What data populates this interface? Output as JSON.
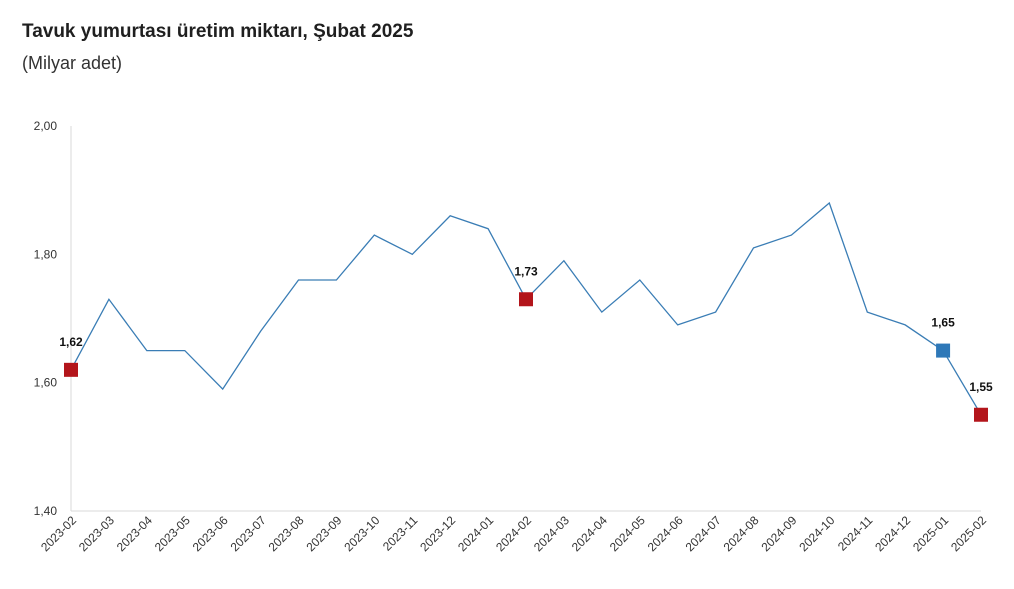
{
  "title": "Tavuk yumurtası üretim miktarı, Şubat 2025",
  "subtitle": "(Milyar adet)",
  "colors": {
    "line": "#3a7db5",
    "highlight_red": "#b3151b",
    "highlight_blue": "#2e78b8",
    "axis": "#d9d9d9"
  },
  "chart_data": {
    "type": "line",
    "title": "Tavuk yumurtası üretim miktarı, Şubat 2025",
    "subtitle": "(Milyar adet)",
    "x": [
      "2023-02",
      "2023-03",
      "2023-04",
      "2023-05",
      "2023-06",
      "2023-07",
      "2023-08",
      "2023-09",
      "2023-10",
      "2023-11",
      "2023-12",
      "2024-01",
      "2024-02",
      "2024-03",
      "2024-04",
      "2024-05",
      "2024-06",
      "2024-07",
      "2024-08",
      "2024-09",
      "2024-10",
      "2024-11",
      "2024-12",
      "2025-01",
      "2025-02"
    ],
    "values": [
      1.62,
      1.73,
      1.65,
      1.65,
      1.59,
      1.68,
      1.76,
      1.76,
      1.83,
      1.8,
      1.86,
      1.84,
      1.73,
      1.79,
      1.71,
      1.76,
      1.69,
      1.71,
      1.81,
      1.83,
      1.88,
      1.71,
      1.69,
      1.65,
      1.55
    ],
    "ylim": [
      1.4,
      2.0
    ],
    "yticks": [
      "1,40",
      "1,60",
      "1,80",
      "2,00"
    ],
    "ytick_values": [
      1.4,
      1.6,
      1.8,
      2.0
    ],
    "grid": false,
    "markers": [
      {
        "index": 0,
        "label": "1,62",
        "color": "#b3151b"
      },
      {
        "index": 12,
        "label": "1,73",
        "color": "#b3151b"
      },
      {
        "index": 23,
        "label": "1,65",
        "color": "#2e78b8"
      },
      {
        "index": 24,
        "label": "1,55",
        "color": "#b3151b"
      }
    ]
  }
}
